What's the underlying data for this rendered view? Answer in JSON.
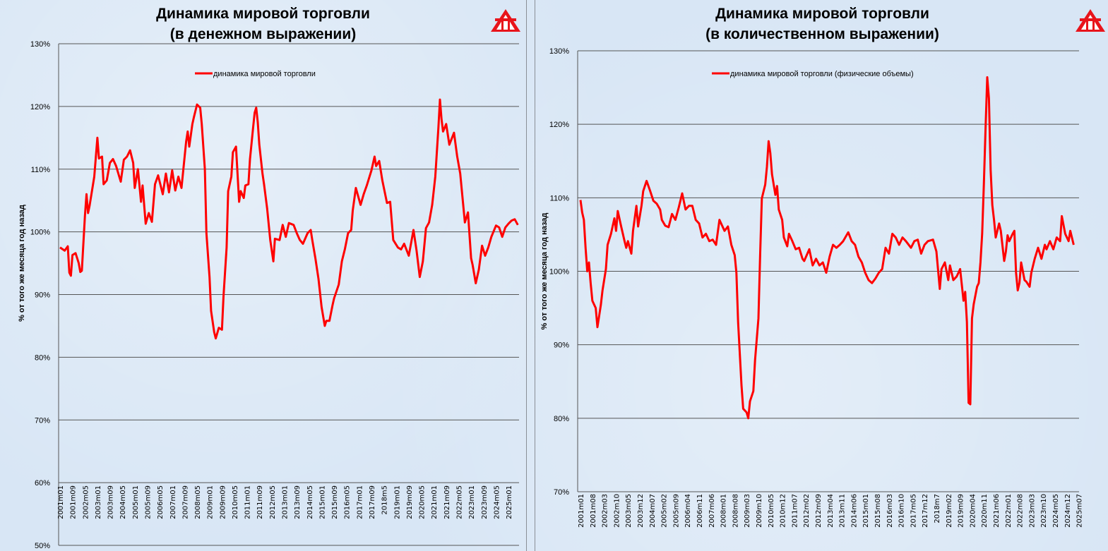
{
  "colors": {
    "series": "#ff0000",
    "grid": "#555555",
    "background": "#d8e6f5",
    "logo": "#e8141b"
  },
  "logo_icon": "red-triangle-logo",
  "chart_data": [
    {
      "type": "line",
      "title_line1": "Динамика мировой торговли",
      "title_line2": "(в денежном выражении)",
      "ylabel": "% от того же месяца год назад",
      "ylim": [
        50,
        130
      ],
      "yticks": [
        "50%",
        "60%",
        "70%",
        "80%",
        "90%",
        "100%",
        "110%",
        "120%",
        "130%"
      ],
      "grid": true,
      "legend_position": "top-center",
      "xticks": [
        "2001m01",
        "2001m09",
        "2002m05",
        "2003m01",
        "2003m09",
        "2004m05",
        "2005m01",
        "2005m09",
        "2006m05",
        "2007m01",
        "2007m09",
        "2008m05",
        "2009m01",
        "2009m09",
        "2010m05",
        "2011m01",
        "2011m09",
        "2012m05",
        "2013m01",
        "2013m09",
        "2014m05",
        "2015m01",
        "2015m09",
        "2016m05",
        "2017m01",
        "2017m09",
        "2018m5",
        "2019m01",
        "2019m09",
        "2020m05",
        "2021m01",
        "2021m09",
        "2022m05",
        "2023m01",
        "2023m09",
        "2024m05",
        "2025m01"
      ],
      "series": [
        {
          "name": "динамика мировой торговли",
          "x": [
            "2001m01",
            "2001m04",
            "2001m06",
            "2001m07",
            "2001m08",
            "2001m09",
            "2001m11",
            "2002m01",
            "2002m02",
            "2002m03",
            "2002m05",
            "2002m06",
            "2002m07",
            "2002m08",
            "2002m11",
            "2003m01",
            "2003m02",
            "2003m04",
            "2003m05",
            "2003m07",
            "2003m09",
            "2003m11",
            "2004m01",
            "2004m04",
            "2004m06",
            "2004m08",
            "2004m10",
            "2004m12",
            "2005m01",
            "2005m03",
            "2005m05",
            "2005m06",
            "2005m08",
            "2005m10",
            "2005m12",
            "2006m02",
            "2006m04",
            "2006m07",
            "2006m09",
            "2006m11",
            "2007m01",
            "2007m03",
            "2007m05",
            "2007m07",
            "2007m10",
            "2007m11",
            "2007m12",
            "2008m02",
            "2008m03",
            "2008m05",
            "2008m07",
            "2008m08",
            "2008m10",
            "2008m11",
            "2009m01",
            "2009m02",
            "2009m04",
            "2009m05",
            "2009m07",
            "2009m09",
            "2009m10",
            "2009m12",
            "2010m01",
            "2010m03",
            "2010m04",
            "2010m06",
            "2010m08",
            "2010m09",
            "2010m11",
            "2010m12",
            "2011m02",
            "2011m03",
            "2011m05",
            "2011m06",
            "2011m07",
            "2011m08",
            "2011m09",
            "2011m11",
            "2011m12",
            "2012m02",
            "2012m04",
            "2012m06",
            "2012m07",
            "2012m10",
            "2012m12",
            "2013m02",
            "2013m04",
            "2013m07",
            "2013m09",
            "2013m11",
            "2014m01",
            "2014m04",
            "2014m06",
            "2014m07",
            "2014m09",
            "2014m11",
            "2015m01",
            "2015m03",
            "2015m04",
            "2015m06",
            "2015m08",
            "2015m09",
            "2015m12",
            "2016m02",
            "2016m04",
            "2016m06",
            "2016m08",
            "2016m09",
            "2016m11",
            "2017m02",
            "2017m04",
            "2017m06",
            "2017m09",
            "2017m11",
            "2017m12",
            "2018m02",
            "2018m04",
            "2018m07",
            "2018m09",
            "2018m11",
            "2019m02",
            "2019m04",
            "2019m06",
            "2019m09",
            "2019m12",
            "2020m02",
            "2020m04",
            "2020m06",
            "2020m08",
            "2020m10",
            "2020m12",
            "2021m02",
            "2021m04",
            "2021m05",
            "2021m06",
            "2021m07",
            "2021m09",
            "2021m11",
            "2022m02",
            "2022m04",
            "2022m06",
            "2022m07",
            "2022m09",
            "2022m11",
            "2023m01",
            "2023m02",
            "2023m04",
            "2023m06",
            "2023m08",
            "2023m10",
            "2023m12",
            "2024m02",
            "2024m05",
            "2024m07",
            "2024m09",
            "2024m11",
            "2025m01",
            "2025m03",
            "2025m05",
            "2025m07"
          ],
          "y": [
            97.5,
            97.0,
            97.7,
            93.5,
            93.0,
            96.3,
            96.6,
            95.0,
            93.6,
            93.8,
            102.6,
            106.0,
            103.0,
            104.2,
            108.8,
            115.0,
            111.7,
            112.0,
            107.6,
            108.2,
            111.0,
            111.6,
            110.5,
            108.0,
            111.5,
            112.0,
            113.0,
            111.0,
            107.0,
            110.0,
            104.8,
            107.4,
            101.3,
            103.0,
            101.6,
            107.6,
            109.0,
            106.0,
            109.3,
            106.3,
            109.8,
            106.6,
            108.8,
            107.0,
            114.4,
            116.0,
            113.6,
            117.2,
            118.3,
            120.3,
            119.8,
            117.2,
            110.0,
            99.8,
            92.8,
            87.4,
            84.0,
            83.0,
            84.7,
            84.4,
            89.7,
            97.5,
            106.5,
            108.8,
            112.7,
            113.6,
            104.8,
            106.5,
            105.4,
            107.4,
            107.6,
            111.6,
            116.6,
            119.0,
            119.8,
            117.5,
            113.9,
            109.3,
            107.6,
            103.7,
            98.7,
            95.3,
            98.9,
            98.7,
            101.1,
            99.2,
            101.4,
            101.1,
            99.8,
            98.7,
            98.1,
            99.8,
            100.3,
            98.7,
            95.8,
            92.5,
            88.0,
            85.0,
            85.8,
            85.8,
            88.3,
            89.4,
            91.6,
            95.3,
            97.3,
            99.8,
            100.3,
            103.4,
            107.0,
            104.3,
            106.0,
            107.4,
            109.8,
            112.0,
            110.5,
            111.3,
            108.2,
            104.6,
            104.8,
            98.7,
            97.5,
            97.2,
            98.1,
            96.2,
            100.3,
            97.0,
            92.8,
            95.3,
            100.6,
            101.5,
            104.3,
            108.8,
            116.6,
            121.1,
            118.0,
            116.0,
            117.2,
            113.9,
            115.8,
            112.1,
            109.3,
            106.7,
            101.5,
            103.1,
            95.8,
            94.7,
            91.8,
            94.0,
            97.8,
            96.2,
            97.5,
            99.2,
            101.0,
            100.7,
            99.2,
            100.7,
            101.3,
            101.8,
            102.0,
            101.1
          ]
        }
      ]
    },
    {
      "type": "line",
      "title_line1": "Динамика мировой торговли",
      "title_line2": "(в количественном выражении)",
      "ylabel": "% от того же месяца год назад",
      "ylim": [
        70,
        130
      ],
      "yticks": [
        "70%",
        "80%",
        "90%",
        "100%",
        "110%",
        "120%",
        "130%"
      ],
      "grid": true,
      "legend_position": "top-center",
      "xticks": [
        "2001m01",
        "2001m08",
        "2002m03",
        "2002m10",
        "2003m05",
        "2003m12",
        "2004m07",
        "2005m02",
        "2005m09",
        "2006m04",
        "2006m11",
        "2007m06",
        "2008m01",
        "2008m08",
        "2009m03",
        "2009m10",
        "2010m05",
        "2010m12",
        "2011m07",
        "2012m02",
        "2012m09",
        "2013m04",
        "2013m11",
        "2014m06",
        "2015m01",
        "2015m08",
        "2016m03",
        "2016m10",
        "2017m05",
        "2017m12",
        "2018m7",
        "2019m02",
        "2019m09",
        "2020m04",
        "2020m11",
        "2021m06",
        "2022m01",
        "2022m08",
        "2023m03",
        "2023m10",
        "2024m05",
        "2024m12",
        "2025m07"
      ],
      "series": [
        {
          "name": "динамика мировой торговли (физические объемы)",
          "x": [
            "2001m01",
            "2001m02",
            "2001m03",
            "2001m04",
            "2001m05",
            "2001m06",
            "2001m07",
            "2001m08",
            "2001m10",
            "2001m11",
            "2002m01",
            "2002m02",
            "2002m04",
            "2002m05",
            "2002m07",
            "2002m09",
            "2002m10",
            "2002m11",
            "2003m01",
            "2003m03",
            "2003m04",
            "2003m05",
            "2003m07",
            "2003m08",
            "2003m10",
            "2003m11",
            "2004m01",
            "2004m02",
            "2004m04",
            "2004m06",
            "2004m08",
            "2004m10",
            "2004m12",
            "2005m01",
            "2005m03",
            "2005m05",
            "2005m07",
            "2005m09",
            "2005m11",
            "2006m01",
            "2006m03",
            "2006m05",
            "2006m07",
            "2006m09",
            "2006m11",
            "2007m01",
            "2007m03",
            "2007m05",
            "2007m07",
            "2007m09",
            "2007m11",
            "2008m02",
            "2008m04",
            "2008m06",
            "2008m08",
            "2008m09",
            "2008m10",
            "2008m12",
            "2009m01",
            "2009m03",
            "2009m04",
            "2009m05",
            "2009m07",
            "2009m08",
            "2009m10",
            "2009m11",
            "2009m12",
            "2010m02",
            "2010m03",
            "2010m04",
            "2010m05",
            "2010m06",
            "2010m08",
            "2010m09",
            "2010m10",
            "2010m12",
            "2011m01",
            "2011m03",
            "2011m04",
            "2011m06",
            "2011m08",
            "2011m10",
            "2011m12",
            "2012m01",
            "2012m04",
            "2012m06",
            "2012m08",
            "2012m10",
            "2012m12",
            "2013m02",
            "2013m04",
            "2013m06",
            "2013m08",
            "2013m10",
            "2013m12",
            "2014m03",
            "2014m05",
            "2014m07",
            "2014m09",
            "2014m11",
            "2015m01",
            "2015m03",
            "2015m05",
            "2015m07",
            "2015m09",
            "2015m11",
            "2016m01",
            "2016m03",
            "2016m05",
            "2016m07",
            "2016m09",
            "2016m11",
            "2017m01",
            "2017m04",
            "2017m06",
            "2017m08",
            "2017m10",
            "2017m12",
            "2018m02",
            "2018m05",
            "2018m07",
            "2018m09",
            "2018m10",
            "2018m12",
            "2019m02",
            "2019m03",
            "2019m05",
            "2019m07",
            "2019m09",
            "2019m11",
            "2019m12",
            "2020m01",
            "2020m02",
            "2020m03",
            "2020m04",
            "2020m05",
            "2020m07",
            "2020m08",
            "2020m09",
            "2020m10",
            "2020m11",
            "2020m12",
            "2021m01",
            "2021m02",
            "2021m03",
            "2021m04",
            "2021m05",
            "2021m06",
            "2021m08",
            "2021m09",
            "2021m11",
            "2021m12",
            "2022m01",
            "2022m02",
            "2022m04",
            "2022m05",
            "2022m06",
            "2022m07",
            "2022m08",
            "2022m09",
            "2022m11",
            "2022m12",
            "2023m02",
            "2023m03",
            "2023m05",
            "2023m07",
            "2023m09",
            "2023m11",
            "2023m12",
            "2024m02",
            "2024m04",
            "2024m06",
            "2024m08",
            "2024m09",
            "2024m11",
            "2025m01",
            "2025m02",
            "2025m04"
          ],
          "y": [
            109.7,
            108.0,
            107.0,
            103.2,
            100.0,
            101.2,
            98.4,
            96.0,
            95.0,
            92.4,
            95.4,
            97.4,
            100.3,
            103.6,
            105.1,
            107.2,
            105.5,
            108.2,
            106.1,
            104.1,
            103.2,
            104.1,
            102.4,
            105.5,
            108.9,
            106.1,
            108.9,
            110.9,
            112.3,
            111.0,
            109.6,
            109.2,
            108.4,
            107.0,
            106.2,
            106.0,
            107.8,
            107.0,
            108.7,
            110.6,
            108.4,
            108.9,
            108.9,
            107.0,
            106.5,
            104.6,
            105.1,
            104.1,
            104.3,
            103.6,
            107.0,
            105.5,
            106.1,
            103.6,
            102.2,
            99.8,
            93.1,
            84.5,
            81.3,
            80.8,
            80.0,
            82.3,
            83.7,
            87.9,
            93.6,
            102.2,
            109.9,
            111.8,
            114.2,
            117.7,
            116.1,
            113.2,
            110.4,
            111.6,
            108.4,
            107.0,
            104.6,
            103.4,
            105.1,
            104.1,
            103.0,
            103.2,
            101.7,
            101.4,
            103.0,
            100.8,
            101.7,
            100.8,
            101.2,
            99.8,
            102.0,
            103.6,
            103.2,
            103.6,
            104.1,
            105.3,
            104.1,
            103.6,
            102.0,
            101.2,
            99.8,
            98.8,
            98.4,
            99.0,
            99.8,
            100.3,
            103.2,
            102.4,
            105.1,
            104.6,
            103.6,
            104.6,
            104.1,
            103.2,
            104.1,
            104.3,
            102.4,
            103.6,
            104.1,
            104.3,
            102.7,
            97.6,
            100.3,
            101.2,
            98.8,
            100.8,
            98.8,
            99.3,
            100.3,
            96.0,
            97.2,
            93.1,
            82.1,
            81.9,
            93.6,
            95.5,
            97.9,
            98.4,
            101.2,
            105.1,
            111.8,
            119.4,
            126.4,
            123.5,
            113.8,
            109.0,
            107.0,
            104.6,
            106.5,
            105.5,
            101.4,
            102.7,
            104.9,
            104.1,
            105.1,
            105.5,
            99.8,
            97.4,
            98.4,
            101.2,
            98.8,
            98.6,
            97.9,
            99.8,
            101.7,
            103.2,
            101.7,
            103.6,
            103.0,
            104.1,
            103.0,
            104.6,
            104.1,
            107.5,
            105.1,
            104.1,
            105.5,
            103.6
          ]
        }
      ]
    }
  ]
}
